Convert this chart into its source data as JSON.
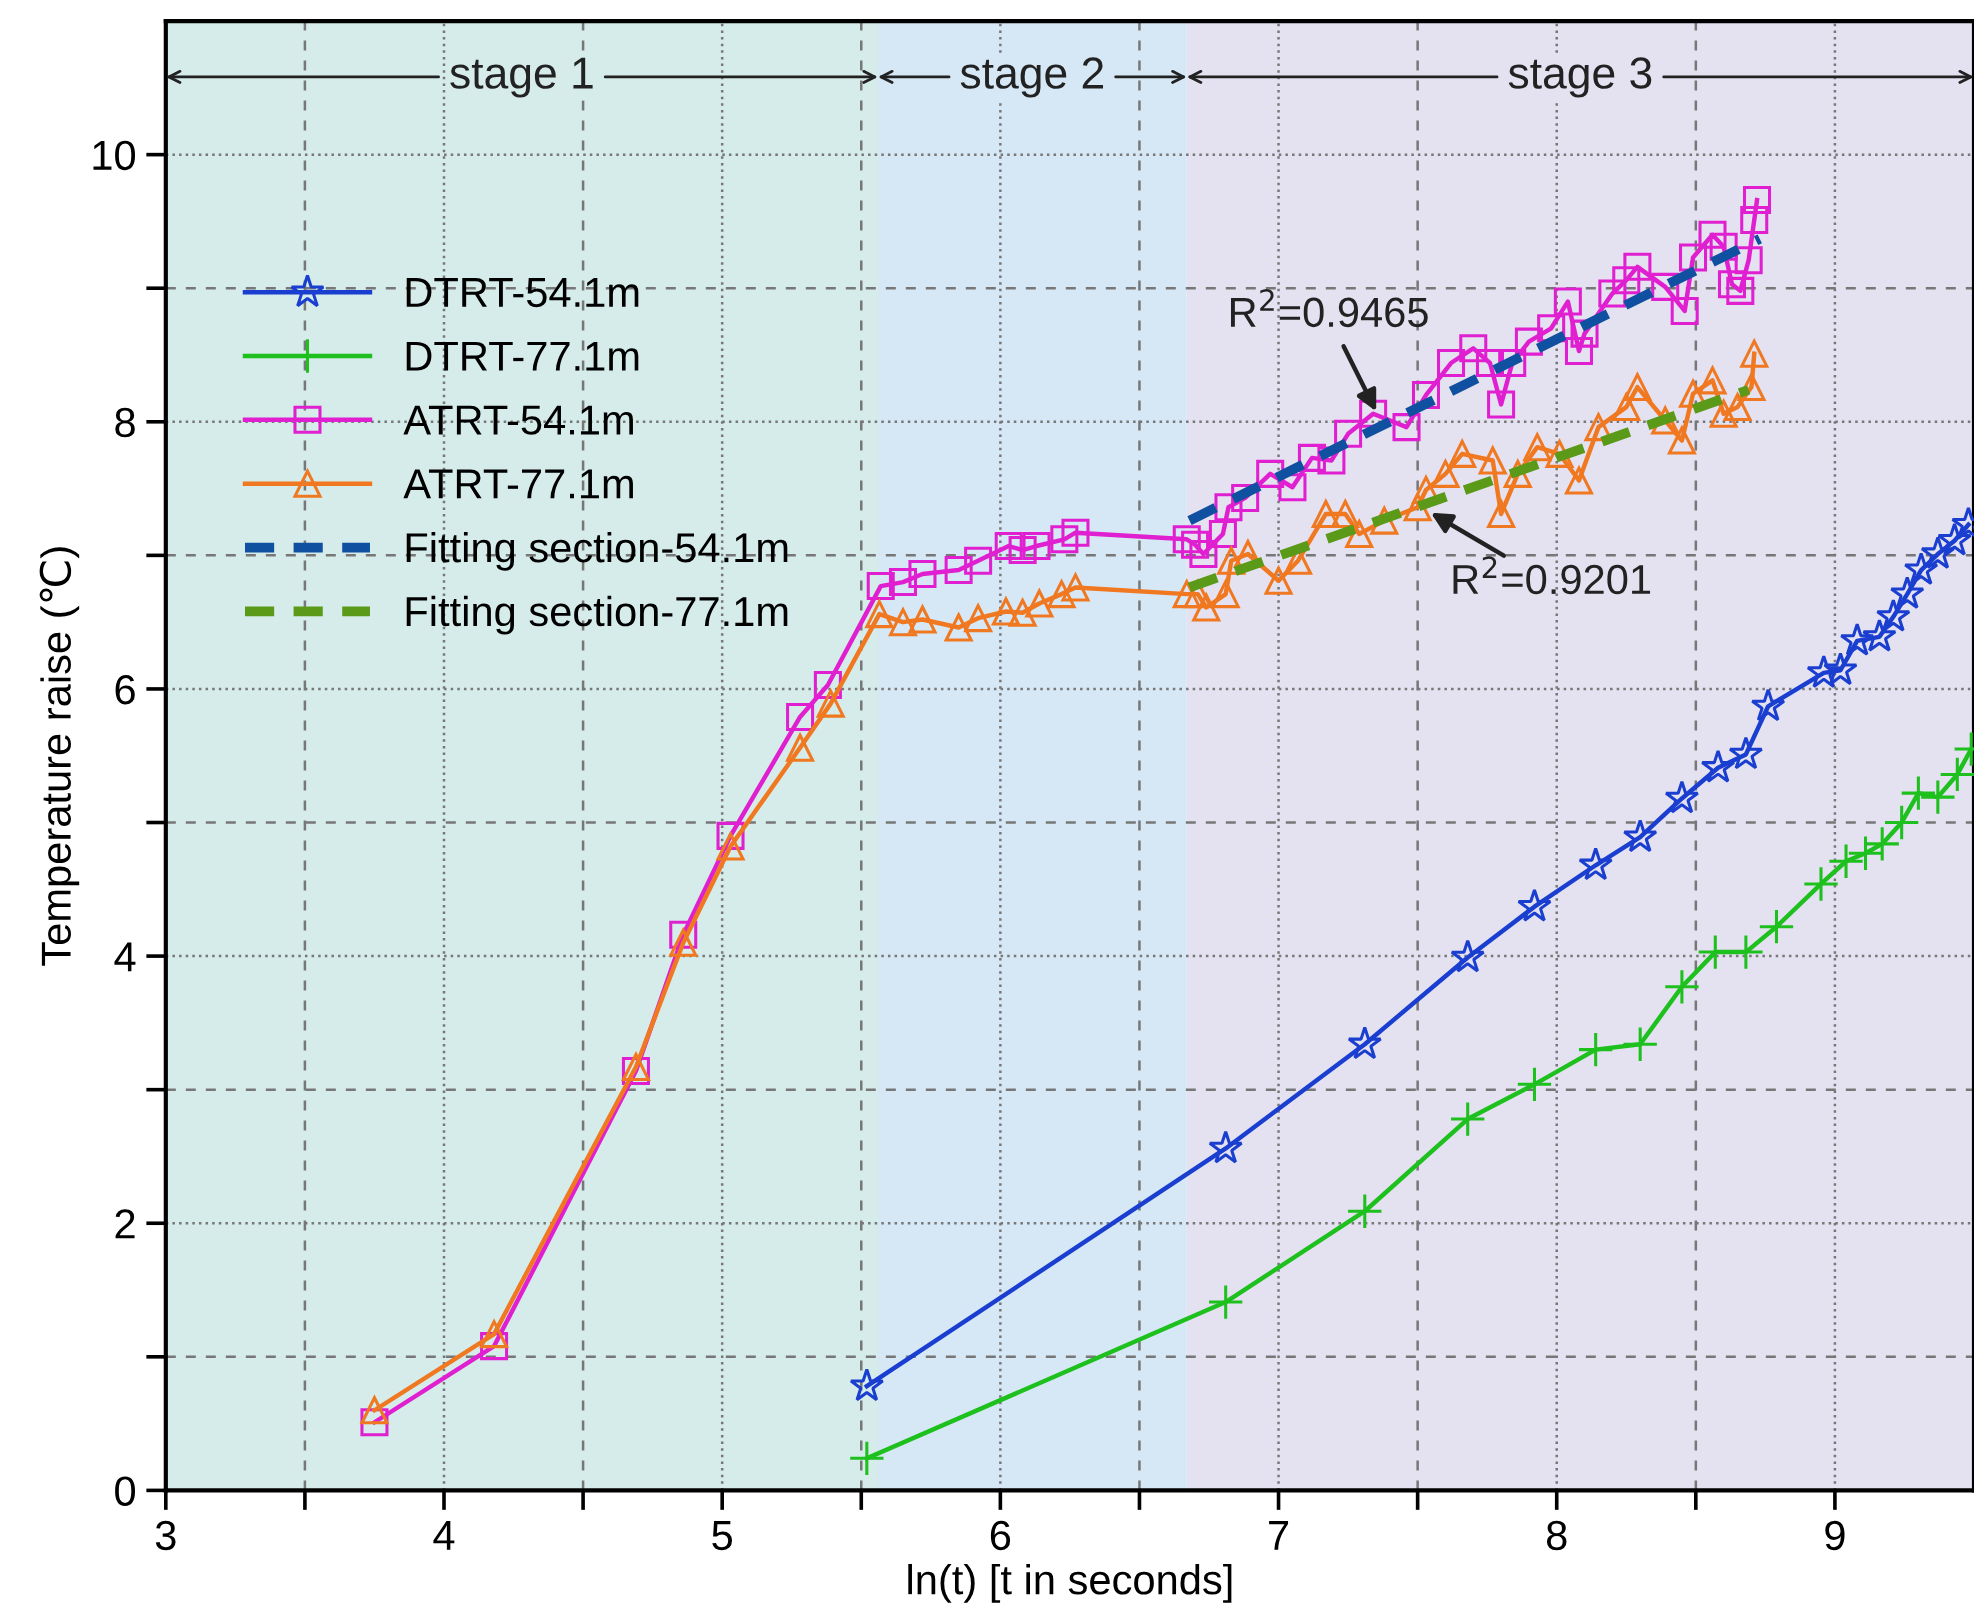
{
  "chart_data": {
    "type": "line",
    "xlabel": "ln(t) [t in seconds]",
    "ylabel": "Temperature raise (℃)",
    "xlim": [
      3,
      9.5
    ],
    "ylim": [
      0,
      11
    ],
    "xticks": [
      3,
      {
        "value": 3.5,
        "label": null
      },
      4,
      {
        "value": 4.5,
        "label": null
      },
      5,
      {
        "value": 5.5,
        "label": null
      },
      6,
      {
        "value": 6.5,
        "label": null
      },
      7,
      {
        "value": 7.5,
        "label": null
      },
      8,
      {
        "value": 8.5,
        "label": null
      },
      9
    ],
    "yticks": [
      0,
      {
        "value": 1,
        "label": null
      },
      2,
      {
        "value": 3,
        "label": null
      },
      4,
      {
        "value": 5,
        "label": null
      },
      6,
      {
        "value": 7,
        "label": null
      },
      8,
      {
        "value": 9,
        "label": null
      },
      10
    ],
    "grid": true,
    "legend": "top left",
    "bands": [
      {
        "axis": "x",
        "from": 3,
        "to": 5.56,
        "label": "stage 1",
        "color": "#d5ecea"
      },
      {
        "axis": "x",
        "from": 5.56,
        "to": 6.67,
        "label": "stage 2",
        "color": "#d6e8f6"
      },
      {
        "axis": "x",
        "from": 6.67,
        "to": 9.5,
        "label": "stage 3",
        "color": "#e4e2f1"
      }
    ],
    "annotations": [
      {
        "text": "R$^{2}$=0.9465",
        "x": 7.36,
        "y": 8.04
      },
      {
        "text": "R$^{2}$=0.9201",
        "x": 7.53,
        "y": 7.34
      }
    ],
    "series": [
      {
        "name": "DTRT-54.1m",
        "color": "#1a3fd0",
        "marker": "star",
        "line_style": "solid",
        "x": [
          5.52,
          6.81,
          7.31,
          7.68,
          7.92,
          8.14,
          8.3,
          8.45,
          8.58,
          8.68,
          8.76,
          8.96,
          9.02,
          9.08,
          9.16,
          9.21,
          9.26,
          9.31,
          9.37,
          9.43,
          9.48
        ],
        "values": [
          0.78,
          2.56,
          3.34,
          3.99,
          4.37,
          4.68,
          4.89,
          5.18,
          5.41,
          5.51,
          5.87,
          6.12,
          6.14,
          6.36,
          6.39,
          6.54,
          6.71,
          6.89,
          7.01,
          7.11,
          7.23
        ]
      },
      {
        "name": "DTRT-77.1m",
        "color": "#1ec01e",
        "marker": "cross",
        "line_style": "solid",
        "x": [
          5.52,
          6.81,
          7.31,
          7.68,
          7.92,
          8.14,
          8.3,
          8.45,
          8.57,
          8.68,
          8.79,
          8.95,
          9.04,
          9.11,
          9.17,
          9.24,
          9.3,
          9.37,
          9.44,
          9.49
        ],
        "values": [
          0.24,
          1.41,
          2.09,
          2.78,
          3.04,
          3.3,
          3.34,
          3.77,
          4.03,
          4.03,
          4.22,
          4.54,
          4.71,
          4.77,
          4.84,
          5.0,
          5.22,
          5.19,
          5.36,
          5.55
        ]
      },
      {
        "name": "ATRT-54.1m",
        "color": "#e020d0",
        "marker": "square",
        "line_style": "solid",
        "x": [
          3.75,
          4.18,
          4.69,
          4.86,
          5.03,
          5.28,
          5.38,
          5.57,
          5.65,
          5.72,
          5.85,
          5.92,
          6.03,
          6.08,
          6.13,
          6.23,
          6.27,
          6.67,
          6.7,
          6.73,
          6.8,
          6.82,
          6.88,
          6.97,
          7.05,
          7.12,
          7.19,
          7.25,
          7.34,
          7.46,
          7.53,
          7.62,
          7.7,
          7.76,
          7.8,
          7.84,
          7.9,
          7.98,
          8.04,
          8.08,
          8.1,
          8.2,
          8.25,
          8.29,
          8.39,
          8.46,
          8.49,
          8.56,
          8.6,
          8.63,
          8.66,
          8.69,
          8.71,
          8.72
        ],
        "values": [
          0.51,
          1.08,
          3.14,
          4.16,
          4.9,
          5.79,
          6.03,
          6.77,
          6.8,
          6.86,
          6.89,
          6.96,
          7.07,
          7.04,
          7.07,
          7.12,
          7.17,
          7.12,
          7.08,
          7.01,
          7.16,
          7.36,
          7.43,
          7.61,
          7.51,
          7.73,
          7.71,
          7.91,
          8.06,
          7.96,
          8.2,
          8.44,
          8.55,
          8.44,
          8.13,
          8.44,
          8.6,
          8.7,
          8.9,
          8.53,
          8.66,
          8.96,
          9.06,
          9.16,
          9.01,
          8.83,
          9.23,
          9.4,
          9.31,
          9.03,
          8.98,
          9.21,
          9.51,
          9.66
        ]
      },
      {
        "name": "ATRT-77.1m",
        "color": "#f07820",
        "marker": "triangle",
        "line_style": "solid",
        "x": [
          3.75,
          4.18,
          4.69,
          4.86,
          5.03,
          5.28,
          5.39,
          5.565,
          5.65,
          5.72,
          5.85,
          5.92,
          6.02,
          6.08,
          6.14,
          6.22,
          6.27,
          6.67,
          6.71,
          6.74,
          6.81,
          6.83,
          6.89,
          7.0,
          7.07,
          7.17,
          7.24,
          7.29,
          7.38,
          7.5,
          7.53,
          7.6,
          7.66,
          7.77,
          7.8,
          7.86,
          7.93,
          8.01,
          8.08,
          8.15,
          8.25,
          8.29,
          8.39,
          8.45,
          8.49,
          8.56,
          8.6,
          8.65,
          8.7,
          8.71
        ],
        "values": [
          0.6,
          1.17,
          3.17,
          4.1,
          4.82,
          5.56,
          5.89,
          6.56,
          6.5,
          6.52,
          6.46,
          6.53,
          6.58,
          6.57,
          6.64,
          6.71,
          6.76,
          6.71,
          6.71,
          6.61,
          6.71,
          6.96,
          7.01,
          6.81,
          6.96,
          7.31,
          7.31,
          7.16,
          7.26,
          7.36,
          7.49,
          7.61,
          7.76,
          7.71,
          7.31,
          7.61,
          7.81,
          7.76,
          7.56,
          7.96,
          8.11,
          8.26,
          8.01,
          7.86,
          8.21,
          8.31,
          8.06,
          8.11,
          8.26,
          8.51
        ]
      },
      {
        "name": "Fitting section-54.1m",
        "color": "#1050a0",
        "marker": "none",
        "line_style": "dashed",
        "x": [
          6.68,
          8.73
        ],
        "values": [
          7.26,
          9.37
        ]
      },
      {
        "name": "Fitting section-77.1m",
        "color": "#5a9a18",
        "marker": "none",
        "line_style": "dashed",
        "x": [
          6.68,
          8.69
        ],
        "values": [
          6.76,
          8.24
        ]
      }
    ]
  }
}
